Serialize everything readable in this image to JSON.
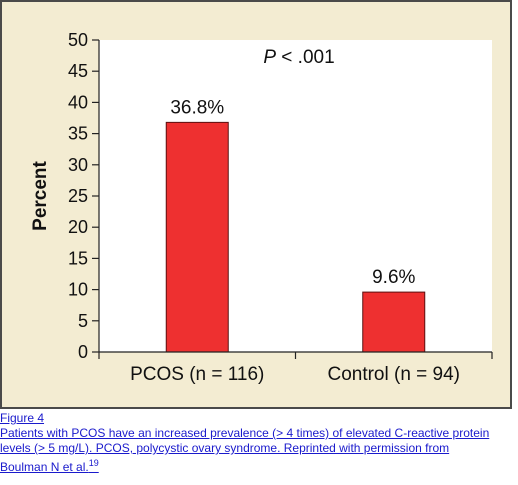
{
  "chart_data": {
    "type": "bar",
    "categories": [
      "PCOS (n = 116)",
      "Control (n = 94)"
    ],
    "values": [
      36.8,
      9.6
    ],
    "data_labels": [
      "36.8%",
      "9.6%"
    ],
    "ylabel": "Percent",
    "ylim": [
      0,
      50
    ],
    "yticks": [
      0,
      5,
      10,
      15,
      20,
      25,
      30,
      35,
      40,
      45,
      50
    ],
    "annotation_italic": "P",
    "annotation_rest": " < .001",
    "bar_color": "#ee3030",
    "plot_background": "#ffffff",
    "panel_background": "#f3ecd2",
    "grid": false,
    "legend": "none"
  },
  "caption": {
    "figure_label": "Figure 4",
    "line1": "Patients with PCOS have an increased prevalence (> 4 times) of elevated C-reactive protein",
    "line2": "levels (> 5 mg/L). PCOS, polycystic ovary syndrome. Reprinted with permission from",
    "line3": "Boulman N et al.",
    "reference": "19"
  }
}
